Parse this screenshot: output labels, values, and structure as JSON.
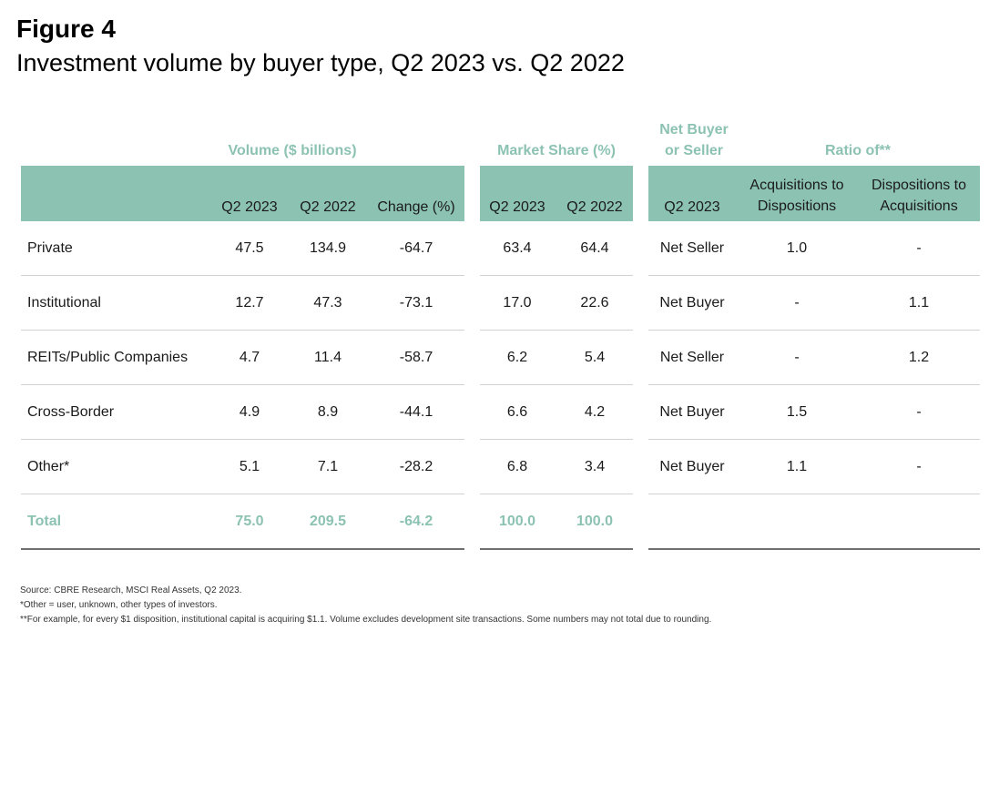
{
  "figure": {
    "label": "Figure 4",
    "title": "Investment volume by buyer type, Q2 2023 vs. Q2 2022"
  },
  "header": {
    "groups": {
      "volume": "Volume ($ billions)",
      "share": "Market Share (%)",
      "net_line1": "Net Buyer",
      "net_line2": "or Seller",
      "ratio": "Ratio of**"
    },
    "columns": {
      "vol_q2_2023": "Q2 2023",
      "vol_q2_2022": "Q2 2022",
      "vol_change": "Change (%)",
      "share_q2_2023": "Q2 2023",
      "share_q2_2022": "Q2 2022",
      "net_q2_2023": "Q2 2023",
      "acq_line1": "Acquisitions to",
      "acq_line2": "Dispositions",
      "disp_line1": "Dispositions to",
      "disp_line2": "Acquisitions"
    }
  },
  "rows": [
    {
      "type": "Private",
      "vol_2023": "47.5",
      "vol_2022": "134.9",
      "change": "-64.7",
      "share_2023": "63.4",
      "share_2022": "64.4",
      "net": "Net Seller",
      "acq_to_disp": "1.0",
      "disp_to_acq": "-"
    },
    {
      "type": "Institutional",
      "vol_2023": "12.7",
      "vol_2022": "47.3",
      "change": "-73.1",
      "share_2023": "17.0",
      "share_2022": "22.6",
      "net": "Net Buyer",
      "acq_to_disp": "-",
      "disp_to_acq": "1.1"
    },
    {
      "type": "REITs/Public Companies",
      "vol_2023": "4.7",
      "vol_2022": "11.4",
      "change": "-58.7",
      "share_2023": "6.2",
      "share_2022": "5.4",
      "net": "Net Seller",
      "acq_to_disp": "-",
      "disp_to_acq": "1.2"
    },
    {
      "type": "Cross-Border",
      "vol_2023": "4.9",
      "vol_2022": "8.9",
      "change": "-44.1",
      "share_2023": "6.6",
      "share_2022": "4.2",
      "net": "Net Buyer",
      "acq_to_disp": "1.5",
      "disp_to_acq": "-"
    },
    {
      "type": "Other*",
      "vol_2023": "5.1",
      "vol_2022": "7.1",
      "change": "-28.2",
      "share_2023": "6.8",
      "share_2022": "3.4",
      "net": "Net Buyer",
      "acq_to_disp": "1.1",
      "disp_to_acq": "-"
    }
  ],
  "total": {
    "type": "Total",
    "vol_2023": "75.0",
    "vol_2022": "209.5",
    "change": "-64.2",
    "share_2023": "100.0",
    "share_2022": "100.0"
  },
  "notes": {
    "source": "Source: CBRE Research, MSCI Real Assets, Q2 2023.",
    "other": "*Other = user, unknown, other types of investors.",
    "example": "**For example, for every $1 disposition, institutional capital is acquiring $1.1. Volume excludes development site transactions. Some numbers may not total due to rounding."
  },
  "colors": {
    "accent": "#8cc2b2",
    "rule": "#d2d2d2",
    "bottom_rule": "#6f6f6f"
  }
}
